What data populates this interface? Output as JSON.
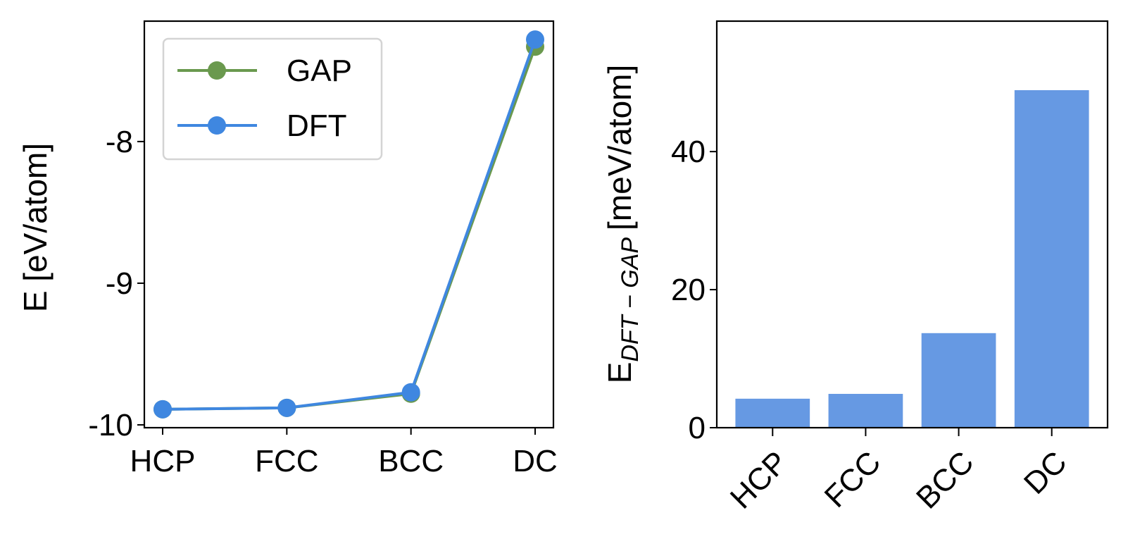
{
  "chart_data": [
    {
      "type": "line",
      "categories": [
        "HCP",
        "FCC",
        "BCC",
        "DC"
      ],
      "series": [
        {
          "name": "GAP",
          "color": "#6a994e",
          "values": [
            -9.89,
            -9.88,
            -9.78,
            -7.33
          ]
        },
        {
          "name": "DFT",
          "color": "#3f87e0",
          "values": [
            -9.89,
            -9.88,
            -9.77,
            -7.28
          ]
        }
      ],
      "ylabel": "E [eV/atom]",
      "yticks": [
        -10,
        -9,
        -8
      ],
      "ytick_labels": [
        "-10",
        "-9",
        "-8"
      ],
      "ylim": [
        -10.02,
        -7.15
      ],
      "legend": "top-left",
      "grid": false
    },
    {
      "type": "bar",
      "categories": [
        "HCP",
        "FCC",
        "BCC",
        "DC"
      ],
      "values": [
        4.2,
        4.9,
        13.7,
        48.9
      ],
      "color": "#6699e3",
      "ylabel_main": "E",
      "ylabel_sub": "DFT − GAP",
      "ylabel_unit": "[meV/atom]",
      "yticks": [
        0,
        20,
        40
      ],
      "ytick_labels": [
        "0",
        "20",
        "40"
      ],
      "ylim": [
        0,
        58.9
      ],
      "grid": false
    }
  ]
}
